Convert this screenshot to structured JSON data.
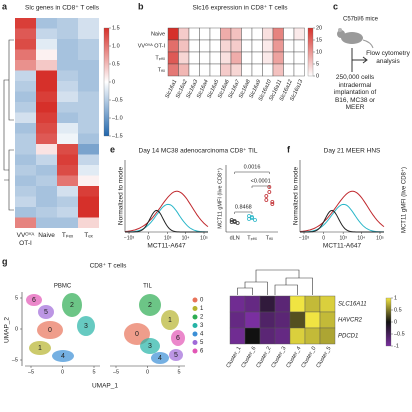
{
  "panel_a": {
    "label": "a",
    "title": "Slc genes in CD8⁺ T cells",
    "columns": [
      "VVᴼⱽᴬ OT-I",
      "Naive",
      "Tₚₑₓ",
      "Tₑₓ"
    ],
    "values": [
      [
        1.4,
        -0.6,
        -0.5,
        -0.3
      ],
      [
        1.2,
        -0.4,
        -0.5,
        -0.3
      ],
      [
        1.3,
        -0.2,
        -0.6,
        -0.5
      ],
      [
        1.0,
        0.1,
        -0.6,
        -0.5
      ],
      [
        0.8,
        0.4,
        -0.6,
        -0.6
      ],
      [
        -0.4,
        1.5,
        -0.5,
        -0.6
      ],
      [
        -0.5,
        1.5,
        -0.4,
        -0.6
      ],
      [
        -0.6,
        1.4,
        -0.3,
        -0.5
      ],
      [
        -0.5,
        1.5,
        -0.5,
        -0.5
      ],
      [
        -0.3,
        1.4,
        -0.6,
        -0.5
      ],
      [
        -0.6,
        1.3,
        -0.2,
        -0.5
      ],
      [
        -0.5,
        1.2,
        -0.1,
        -0.6
      ],
      [
        -0.5,
        0.2,
        1.3,
        -0.9
      ],
      [
        -0.6,
        -0.4,
        1.4,
        -0.4
      ],
      [
        -0.5,
        -0.6,
        1.3,
        -0.2
      ],
      [
        -0.6,
        -0.5,
        1.0,
        0.1
      ],
      [
        -0.5,
        -0.6,
        -0.3,
        1.4
      ],
      [
        -0.4,
        -0.6,
        -0.5,
        1.5
      ],
      [
        -0.6,
        -0.5,
        -0.4,
        1.5
      ],
      [
        0.9,
        -0.6,
        -0.6,
        0.3
      ]
    ],
    "colorbar_ticks": [
      1.5,
      {
        "value": 1,
        "label": "1.0"
      },
      0.5,
      0,
      {
        "value": -0.5,
        "label": "–0.5"
      },
      {
        "value": -1,
        "label": "–1.0"
      },
      {
        "value": -1.5,
        "label": "–1.5"
      }
    ]
  },
  "panel_b": {
    "label": "b",
    "title": "Slc16 expression in CD8⁺ T cells",
    "rows": [
      "Naive",
      "VVᴼⱽᴬ OT-I",
      "Tₚₑₓ",
      "Tₑₓ"
    ],
    "columns": [
      "Slc16a1",
      "Slc16a2",
      "Slc16a3",
      "Slc16a4",
      "Slc16a5",
      "Slc16a6",
      "Slc16a7",
      "Slc16a8",
      "Slc16a9",
      "Slc16a10",
      "Slc16a11",
      "Slc16a12",
      "Slc16a13"
    ],
    "values": [
      [
        20,
        5,
        0,
        0,
        0,
        8,
        6,
        0,
        0,
        3,
        12,
        0,
        2
      ],
      [
        14,
        6,
        0,
        0,
        0,
        4,
        5,
        0,
        0,
        2,
        10,
        0,
        0
      ],
      [
        16,
        4,
        0,
        0,
        0,
        3,
        8,
        0,
        0,
        2,
        9,
        0,
        0
      ],
      [
        13,
        7,
        0,
        0,
        0,
        5,
        4,
        0,
        0,
        0,
        6,
        0,
        0
      ]
    ],
    "colorbar_ticks": [
      0,
      5,
      10,
      15,
      20
    ]
  },
  "panel_c": {
    "label": "c",
    "mice": "C57bl/6 mice",
    "analysis": "Flow cytometry analysis",
    "implant": "250,000 cells intradermal implantation of B16, MC38 or MEER"
  },
  "panel_e": {
    "label": "e",
    "title": "Day 14 MC38 adenocarcinoma CD8⁺ TIL",
    "y_label": "Normalized to mode",
    "x_label": "MCT11-A647",
    "xticks": [
      {
        "value": -1000,
        "label": "−10³"
      },
      0,
      {
        "value": 1000,
        "label": "10³"
      },
      {
        "value": 10000,
        "label": "10⁴"
      },
      {
        "value": 100000,
        "label": "10⁵"
      }
    ],
    "dot_y_label": "MCT11 gMFI (live CD8⁺)",
    "groups": [
      "dLN",
      "Tₚₑₓ",
      "Tₑₓ"
    ],
    "points": [
      [
        1.0,
        1.1,
        0.9,
        1.2,
        1.0
      ],
      [
        1.3,
        1.5,
        1.2,
        1.6,
        1.4
      ],
      [
        3.2,
        4.0,
        2.8,
        3.6,
        4.5,
        3.0
      ]
    ],
    "group_colors": [
      "#333333",
      "#2bb7c9",
      "#c0282d"
    ],
    "p_values": [
      "0.0016",
      "<0.0001",
      "0.8468"
    ]
  },
  "panel_f": {
    "label": "f",
    "title": "Day 21 MEER HNS",
    "y_label": "Normalized to mode",
    "x_label": "MCT11-A647",
    "xticks": [
      {
        "value": -1000,
        "label": "−10³"
      },
      0,
      {
        "value": 1000,
        "label": "10³"
      },
      {
        "value": 10000,
        "label": "10⁴"
      },
      {
        "value": 100000,
        "label": "10⁵"
      }
    ],
    "dot_y_label": "MCT11 gMFI (live CD8⁺)"
  },
  "panel_g": {
    "label": "g",
    "title": "CD8⁺ T cells",
    "umap_panels": [
      "PBMC",
      "TIL"
    ],
    "x_label": "UMAP_1",
    "y_label": "UMAP_2",
    "umap_xticks": [
      {
        "value": -5,
        "label": "–5"
      },
      0,
      5
    ],
    "umap_yticks": [
      5,
      0,
      {
        "value": -5,
        "label": "–5"
      }
    ],
    "clusters": [
      {
        "label": "0",
        "color": "#e8735a"
      },
      {
        "label": "1",
        "color": "#b6b42e"
      },
      {
        "label": "2",
        "color": "#2dad52"
      },
      {
        "label": "3",
        "color": "#25b3a6"
      },
      {
        "label": "4",
        "color": "#3b8fd6"
      },
      {
        "label": "5",
        "color": "#a06ad8"
      },
      {
        "label": "6",
        "color": "#e256b5"
      }
    ],
    "heatmap": {
      "rows": [
        "SLC16A11",
        "HAVCR2",
        "PDCD1"
      ],
      "columns": [
        "Cluster_1",
        "Cluster_6",
        "Cluster_2",
        "Cluster_3",
        "Cluster_4",
        "Cluster_0",
        "Cluster_5"
      ],
      "values": [
        [
          -0.9,
          -0.8,
          -0.3,
          -0.7,
          1.0,
          0.8,
          0.9
        ],
        [
          -0.8,
          -1.0,
          -0.6,
          -0.7,
          0.3,
          1.0,
          0.8
        ],
        [
          -0.9,
          0.0,
          -0.7,
          -0.8,
          0.9,
          0.8,
          0.7
        ]
      ],
      "colorbar_ticks": [
        1,
        0.5,
        0,
        {
          "value": -0.5,
          "label": "–0.5"
        },
        -1
      ]
    }
  }
}
